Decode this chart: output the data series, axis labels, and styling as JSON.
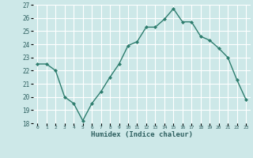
{
  "x": [
    0,
    1,
    2,
    3,
    4,
    5,
    6,
    7,
    8,
    9,
    10,
    11,
    12,
    13,
    14,
    15,
    16,
    17,
    18,
    19,
    20,
    21,
    22,
    23
  ],
  "y": [
    22.5,
    22.5,
    22.0,
    20.0,
    19.5,
    18.2,
    19.5,
    20.4,
    21.5,
    22.5,
    23.9,
    24.2,
    25.3,
    25.3,
    25.9,
    26.7,
    25.7,
    25.7,
    24.6,
    24.3,
    23.7,
    23.0,
    21.3,
    19.8
  ],
  "xlabel": "Humidex (Indice chaleur)",
  "ylim": [
    18,
    27
  ],
  "yticks": [
    18,
    19,
    20,
    21,
    22,
    23,
    24,
    25,
    26,
    27
  ],
  "xticks": [
    0,
    1,
    2,
    3,
    4,
    5,
    6,
    7,
    8,
    9,
    10,
    11,
    12,
    13,
    14,
    15,
    16,
    17,
    18,
    19,
    20,
    21,
    22,
    23
  ],
  "xtick_labels": [
    "0",
    "1",
    "2",
    "3",
    "4",
    "5",
    "6",
    "7",
    "8",
    "9",
    "10",
    "11",
    "12",
    "13",
    "14",
    "15",
    "16",
    "17",
    "18",
    "19",
    "20",
    "21",
    "22",
    "23"
  ],
  "line_color": "#2e7d6e",
  "marker": "D",
  "marker_size": 2.0,
  "bg_color": "#cde8e8",
  "grid_color": "#ffffff",
  "line_width": 1.0
}
